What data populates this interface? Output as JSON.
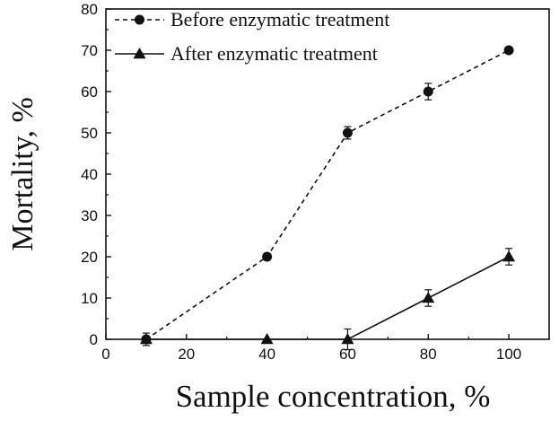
{
  "chart_data": {
    "type": "line",
    "xlabel": "Sample concentration, %",
    "ylabel": "Mortality, %",
    "xlim": [
      0,
      110
    ],
    "ylim": [
      0,
      80
    ],
    "x_ticks": [
      "0",
      "20",
      "40",
      "60",
      "80",
      "100"
    ],
    "y_ticks": [
      "0",
      "10",
      "20",
      "30",
      "40",
      "50",
      "60",
      "70",
      "80"
    ],
    "legend": "top-left",
    "grid": false,
    "x": [
      10,
      40,
      60,
      80,
      100
    ],
    "series": [
      {
        "name": "Before enzymatic treatment",
        "marker": "circle",
        "line_style": "dashed",
        "values": [
          0,
          20,
          50,
          60,
          70
        ],
        "errors": [
          1.5,
          0,
          1.5,
          2,
          0
        ]
      },
      {
        "name": "After enzymatic treatment",
        "marker": "triangle",
        "line_style": "solid",
        "values": [
          0,
          0,
          0,
          10,
          20
        ],
        "errors": [
          0,
          0,
          2.5,
          2,
          2
        ]
      }
    ]
  }
}
